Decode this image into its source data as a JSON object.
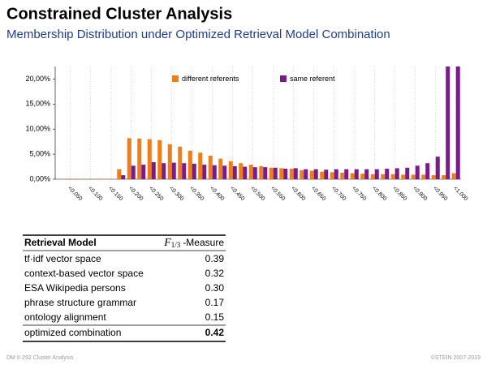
{
  "header": {
    "title": "Constrained Cluster Analysis",
    "subtitle": "Membership Distribution under Optimized Retrieval Model Combination"
  },
  "chart_data": {
    "type": "bar",
    "categories": [
      null,
      "<0.050",
      null,
      "<0.100",
      null,
      "<0.150",
      null,
      "<0.200",
      null,
      "<0.250",
      null,
      "<0.300",
      null,
      "<0.350",
      null,
      "<0.400",
      null,
      "<0.450",
      null,
      "<0.500",
      null,
      "<0.550",
      null,
      "<0.600",
      null,
      "<0.650",
      null,
      "<0.700",
      null,
      "<0.750",
      null,
      "<0.800",
      null,
      "<0.850",
      null,
      "<0.900",
      null,
      "<0.950",
      null,
      "<1.000"
    ],
    "series": [
      {
        "name": "different referents",
        "color": "#ee7d1a",
        "values": [
          0.1,
          0.1,
          0.1,
          0.1,
          0.1,
          0.1,
          2.0,
          8.2,
          8.1,
          8.0,
          7.8,
          7.0,
          6.5,
          5.7,
          5.3,
          4.7,
          4.1,
          3.6,
          3.2,
          2.9,
          2.6,
          2.3,
          2.2,
          2.1,
          1.8,
          1.7,
          1.5,
          1.4,
          1.3,
          1.2,
          1.1,
          1.0,
          1.0,
          1.0,
          0.9,
          0.9,
          0.9,
          0.8,
          0.8,
          1.2
        ]
      },
      {
        "name": "same referent",
        "color": "#7b1a8a",
        "values": [
          0,
          0,
          0,
          0,
          0,
          0,
          0.8,
          2.7,
          2.9,
          3.4,
          3.2,
          3.3,
          3.2,
          3.1,
          2.9,
          2.8,
          2.7,
          2.6,
          2.5,
          2.4,
          2.4,
          2.3,
          2.1,
          2.2,
          2.0,
          2.0,
          1.9,
          2.0,
          2.0,
          2.0,
          2.0,
          2.0,
          2.1,
          2.2,
          2.3,
          2.7,
          3.2,
          4.5,
          22.5,
          22.5
        ]
      }
    ],
    "ylim": [
      0,
      22.5
    ],
    "yticks": [
      {
        "value": 0,
        "label": "0,00%"
      },
      {
        "value": 5,
        "label": "5,00%"
      },
      {
        "value": 10,
        "label": "10,00%"
      },
      {
        "value": 15,
        "label": "15,00%"
      },
      {
        "value": 20,
        "label": "20,00%"
      }
    ],
    "legend": "top"
  },
  "table": {
    "header": {
      "model": "Retrieval Model",
      "symbol": "F",
      "subscript": "1/3",
      "suffix": "-Measure"
    },
    "rows": [
      [
        "tf·idf vector space",
        "0.39"
      ],
      [
        "context-based vector space",
        "0.32"
      ],
      [
        "ESA Wikipedia persons",
        "0.30"
      ],
      [
        "phrase structure grammar",
        "0.17"
      ],
      [
        "ontology alignment",
        "0.15"
      ]
    ],
    "result": [
      "optimized combination",
      "0.42"
    ]
  },
  "footer": {
    "left": "DM II-292   Cluster Analysis",
    "right": "©STEIN 2007-2019"
  }
}
